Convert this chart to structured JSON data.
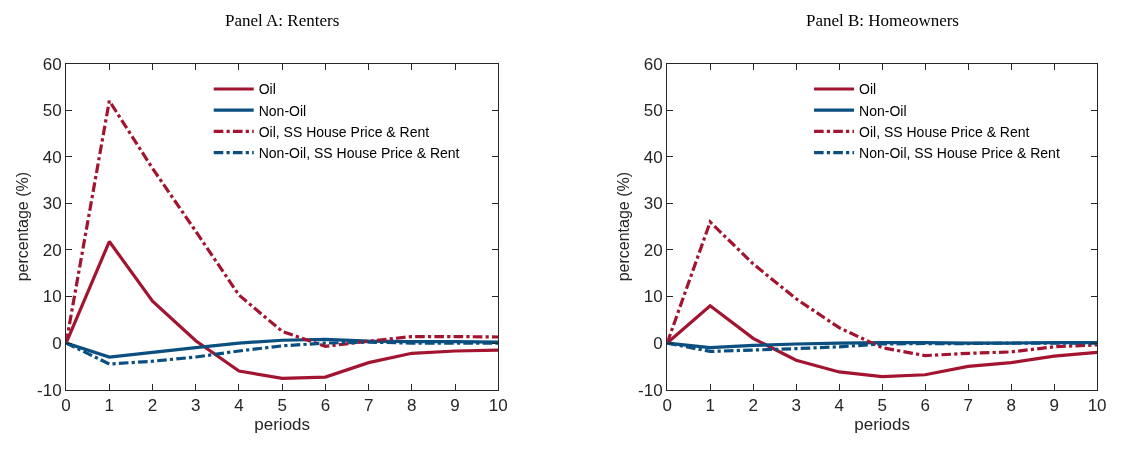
{
  "chart_data": [
    {
      "type": "line",
      "title": "Panel A: Renters",
      "xlabel": "periods",
      "ylabel": "percentage (%)",
      "x": [
        0,
        1,
        2,
        3,
        4,
        5,
        6,
        7,
        8,
        9,
        10
      ],
      "xlim": [
        0,
        10
      ],
      "xticks": [
        0,
        1,
        2,
        3,
        4,
        5,
        6,
        7,
        8,
        9,
        10
      ],
      "ylim": [
        -10,
        60
      ],
      "yticks": [
        -10,
        0,
        10,
        20,
        30,
        40,
        50,
        60
      ],
      "legend": "top",
      "marker": "none",
      "series": [
        {
          "name": "Oil",
          "color": "#a2142f",
          "line_style": "solid",
          "values": [
            0,
            21.8,
            9,
            0.5,
            -6,
            -7.6,
            -7.3,
            -4.2,
            -2.2,
            -1.7,
            -1.5
          ]
        },
        {
          "name": "Non-Oil",
          "color": "#0b4f80",
          "line_style": "solid",
          "values": [
            0,
            -3,
            -2,
            -1,
            0,
            0.6,
            0.8,
            0.4,
            0.3,
            0.3,
            0.2
          ]
        },
        {
          "name": "Oil, SS House Price & Rent",
          "color": "#a2142f",
          "line_style": "dashed",
          "values": [
            0,
            52,
            37.5,
            24,
            10.3,
            2.5,
            -0.7,
            0.4,
            1.4,
            1.4,
            1.3
          ]
        },
        {
          "name": "Non-Oil, SS House Price & Rent",
          "color": "#0b4f80",
          "line_style": "dashed",
          "values": [
            0,
            -4.5,
            -3.9,
            -3,
            -1.7,
            -0.6,
            0,
            0.2,
            0,
            0,
            0
          ]
        }
      ]
    },
    {
      "type": "line",
      "title": "Panel B: Homeowners",
      "xlabel": "periods",
      "ylabel": "percentage (%)",
      "x": [
        0,
        1,
        2,
        3,
        4,
        5,
        6,
        7,
        8,
        9,
        10
      ],
      "xlim": [
        0,
        10
      ],
      "xticks": [
        0,
        1,
        2,
        3,
        4,
        5,
        6,
        7,
        8,
        9,
        10
      ],
      "ylim": [
        -10,
        60
      ],
      "yticks": [
        -10,
        0,
        10,
        20,
        30,
        40,
        50,
        60
      ],
      "legend": "top",
      "marker": "none",
      "series": [
        {
          "name": "Oil",
          "color": "#a2142f",
          "line_style": "solid",
          "values": [
            0,
            8,
            1,
            -3.7,
            -6.2,
            -7.2,
            -6.8,
            -5,
            -4.2,
            -2.8,
            -2
          ]
        },
        {
          "name": "Non-Oil",
          "color": "#0b4f80",
          "line_style": "solid",
          "values": [
            0,
            -1,
            -0.5,
            -0.2,
            0,
            0.1,
            0.1,
            0,
            0,
            0.1,
            0.1
          ]
        },
        {
          "name": "Oil, SS House Price & Rent",
          "color": "#a2142f",
          "line_style": "dashed",
          "values": [
            0,
            26,
            17,
            9.5,
            3.3,
            -1,
            -2.7,
            -2.2,
            -1.9,
            -0.8,
            -0.4
          ]
        },
        {
          "name": "Non-Oil, SS House Price & Rent",
          "color": "#0b4f80",
          "line_style": "dashed",
          "values": [
            0,
            -1.8,
            -1.5,
            -1.2,
            -0.8,
            -0.2,
            -0.1,
            -0.1,
            0,
            0,
            0
          ]
        }
      ]
    }
  ]
}
